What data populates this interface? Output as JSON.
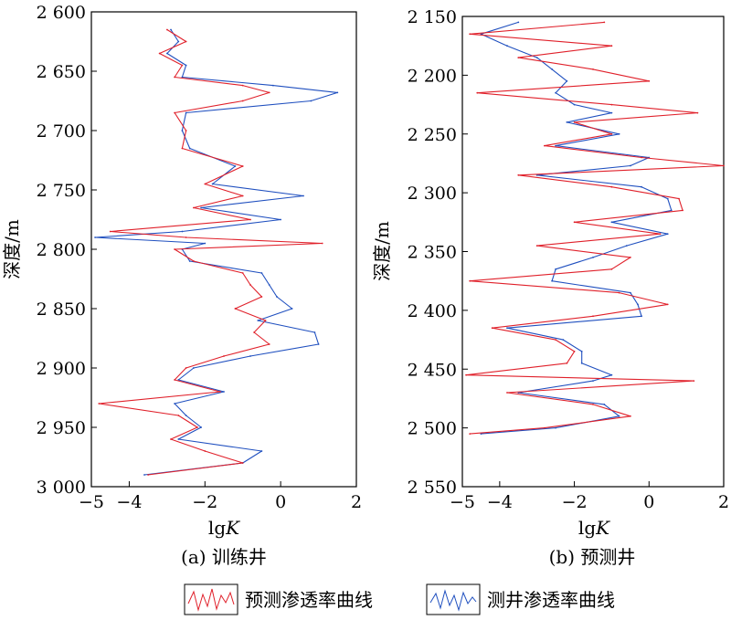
{
  "figure": {
    "legend": [
      {
        "label": "预测渗透率曲线",
        "color": "#e0202a"
      },
      {
        "label": "测井渗透率曲线",
        "color": "#1f4fbf"
      }
    ]
  },
  "chart_data": [
    {
      "type": "line",
      "caption": "(a) 训练井",
      "xlabel_main": "lg",
      "xlabel_italic": "K",
      "ylabel": "深度/m",
      "xlim": [
        -5,
        2
      ],
      "ylim": [
        2600,
        3000
      ],
      "y_inverted": true,
      "x_ticks": [
        -5,
        -4,
        -2,
        0,
        2
      ],
      "x_tick_labels": [
        "−5",
        "−4",
        "−2",
        "0",
        "2"
      ],
      "y_ticks": [
        2600,
        2650,
        2700,
        2750,
        2800,
        2850,
        2900,
        2950,
        3000
      ],
      "y_tick_labels": [
        "2 600",
        "2 650",
        "2 700",
        "2 750",
        "2 800",
        "2 850",
        "2 900",
        "2 950",
        "3 000"
      ],
      "series": [
        {
          "name": "预测渗透率曲线",
          "color": "#e0202a",
          "depth": [
            2615,
            2625,
            2635,
            2645,
            2655,
            2662,
            2668,
            2675,
            2685,
            2700,
            2715,
            2730,
            2745,
            2755,
            2765,
            2775,
            2785,
            2790,
            2795,
            2800,
            2810,
            2820,
            2830,
            2840,
            2850,
            2860,
            2870,
            2880,
            2890,
            2900,
            2910,
            2920,
            2930,
            2940,
            2950,
            2960,
            2970,
            2980,
            2990
          ],
          "lgk": [
            -3.0,
            -2.5,
            -3.2,
            -2.6,
            -2.8,
            -1.0,
            -0.3,
            -1.0,
            -2.8,
            -2.5,
            -2.6,
            -1.0,
            -2.0,
            -1.0,
            -2.3,
            -0.8,
            -4.5,
            -2.5,
            1.1,
            -2.8,
            -2.3,
            -1.0,
            -0.8,
            -0.5,
            -1.2,
            -0.4,
            -0.7,
            -0.3,
            -1.5,
            -2.5,
            -2.8,
            -1.6,
            -4.8,
            -2.7,
            -2.2,
            -2.9,
            -2.0,
            -1.0,
            -3.5
          ]
        },
        {
          "name": "测井渗透率曲线",
          "color": "#1f4fbf",
          "depth": [
            2615,
            2625,
            2635,
            2645,
            2655,
            2662,
            2668,
            2675,
            2685,
            2700,
            2715,
            2730,
            2745,
            2755,
            2765,
            2775,
            2785,
            2790,
            2795,
            2800,
            2810,
            2820,
            2830,
            2840,
            2850,
            2860,
            2870,
            2880,
            2890,
            2900,
            2910,
            2920,
            2930,
            2940,
            2950,
            2960,
            2970,
            2980,
            2990
          ],
          "lgk": [
            -2.9,
            -2.7,
            -3.0,
            -2.5,
            -2.6,
            -0.2,
            1.5,
            0.8,
            -2.5,
            -2.6,
            -2.4,
            -1.2,
            -1.8,
            0.6,
            -2.1,
            0.0,
            -2.6,
            -4.9,
            -2.0,
            -2.6,
            -2.4,
            -0.5,
            -0.3,
            -0.1,
            0.3,
            -0.6,
            0.9,
            1.0,
            -0.8,
            -2.3,
            -2.7,
            -1.5,
            -2.8,
            -2.5,
            -2.1,
            -2.7,
            -0.5,
            -1.0,
            -3.6
          ]
        }
      ]
    },
    {
      "type": "line",
      "caption": "(b) 预测井",
      "xlabel_main": "lg",
      "xlabel_italic": "K",
      "ylabel": "深度/m",
      "xlim": [
        -5,
        2
      ],
      "ylim": [
        2150,
        2550
      ],
      "y_inverted": true,
      "x_ticks": [
        -5,
        -4,
        -2,
        0,
        2
      ],
      "x_tick_labels": [
        "−5",
        "−4",
        "−2",
        "0",
        "2"
      ],
      "y_ticks": [
        2150,
        2200,
        2250,
        2300,
        2350,
        2400,
        2450,
        2500,
        2550
      ],
      "y_tick_labels": [
        "2 150",
        "2 200",
        "2 250",
        "2 300",
        "2 350",
        "2 400",
        "2 450",
        "2 500",
        "2 550"
      ],
      "series": [
        {
          "name": "预测渗透率曲线",
          "color": "#e0202a",
          "depth": [
            2155,
            2165,
            2175,
            2185,
            2195,
            2205,
            2215,
            2225,
            2232,
            2240,
            2250,
            2260,
            2270,
            2277,
            2285,
            2295,
            2305,
            2315,
            2325,
            2335,
            2345,
            2355,
            2365,
            2375,
            2385,
            2395,
            2405,
            2415,
            2425,
            2435,
            2445,
            2455,
            2460,
            2470,
            2480,
            2490,
            2500,
            2505
          ],
          "lgk": [
            -1.2,
            -4.8,
            -1.0,
            -3.5,
            -1.5,
            0.0,
            -4.6,
            -1.0,
            1.3,
            -2.0,
            -1.0,
            -2.8,
            -0.2,
            2.0,
            -3.5,
            -1.0,
            0.8,
            0.9,
            -2.0,
            0.3,
            -3.0,
            -0.5,
            -1.0,
            -4.8,
            -0.8,
            0.5,
            -1.5,
            -4.2,
            -2.5,
            -2.0,
            -2.2,
            -4.9,
            1.2,
            -3.8,
            -1.5,
            -0.5,
            -2.8,
            -4.8
          ]
        },
        {
          "name": "测井渗透率曲线",
          "color": "#1f4fbf",
          "depth": [
            2155,
            2165,
            2175,
            2185,
            2195,
            2205,
            2215,
            2225,
            2232,
            2240,
            2250,
            2260,
            2270,
            2277,
            2285,
            2295,
            2305,
            2315,
            2325,
            2335,
            2345,
            2355,
            2365,
            2375,
            2385,
            2395,
            2405,
            2415,
            2425,
            2435,
            2445,
            2455,
            2460,
            2470,
            2480,
            2490,
            2500,
            2505
          ],
          "lgk": [
            -3.5,
            -4.5,
            -3.8,
            -3.0,
            -2.6,
            -2.2,
            -2.5,
            -2.0,
            -1.0,
            -2.2,
            -0.8,
            -2.5,
            0.0,
            -0.5,
            -3.0,
            -0.2,
            0.5,
            0.6,
            -1.0,
            0.5,
            -0.6,
            -1.5,
            -2.5,
            -2.6,
            -0.5,
            -0.3,
            -0.2,
            -3.8,
            -2.3,
            -1.8,
            -1.8,
            -1.0,
            -1.5,
            -3.5,
            -1.2,
            -0.8,
            -2.5,
            -4.5
          ]
        }
      ]
    }
  ]
}
